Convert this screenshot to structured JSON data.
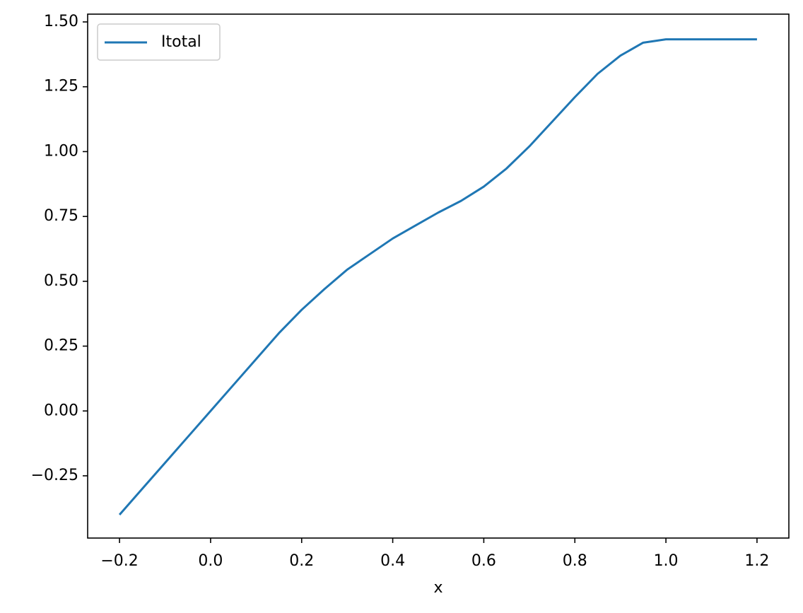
{
  "chart_data": {
    "type": "line",
    "x_label": "x",
    "x": [
      -0.2,
      -0.15,
      -0.1,
      -0.05,
      0.0,
      0.05,
      0.1,
      0.15,
      0.2,
      0.25,
      0.3,
      0.35,
      0.4,
      0.45,
      0.5,
      0.55,
      0.6,
      0.65,
      0.7,
      0.75,
      0.8,
      0.85,
      0.9,
      0.95,
      1.0,
      1.1,
      1.2
    ],
    "series": [
      {
        "name": "Itotal",
        "color": "#1f77b4",
        "values": [
          -0.4,
          -0.3,
          -0.2,
          -0.1,
          0.0,
          0.1,
          0.2,
          0.3,
          0.39,
          0.47,
          0.545,
          0.605,
          0.665,
          0.715,
          0.765,
          0.81,
          0.865,
          0.935,
          1.02,
          1.115,
          1.21,
          1.3,
          1.37,
          1.42,
          1.433,
          1.433,
          1.433
        ]
      }
    ],
    "xlim": [
      -0.27,
      1.27
    ],
    "ylim": [
      -0.49,
      1.53
    ],
    "xticks": [
      {
        "value": -0.2,
        "label": "−0.2"
      },
      {
        "value": 0,
        "label": "0.0"
      },
      0.2,
      0.4,
      0.6,
      0.8,
      {
        "value": 1,
        "label": "1.0"
      },
      1.2
    ],
    "yticks": [
      {
        "value": -0.25,
        "label": "−0.25"
      },
      {
        "value": 0,
        "label": "0.00"
      },
      {
        "value": 0.25,
        "label": "0.25"
      },
      {
        "value": 0.5,
        "label": "0.50"
      },
      {
        "value": 0.75,
        "label": "0.75"
      },
      {
        "value": 1,
        "label": "1.00"
      },
      {
        "value": 1.25,
        "label": "1.25"
      },
      {
        "value": 1.5,
        "label": "1.50"
      }
    ],
    "legend": "upper-left",
    "grid": false
  }
}
